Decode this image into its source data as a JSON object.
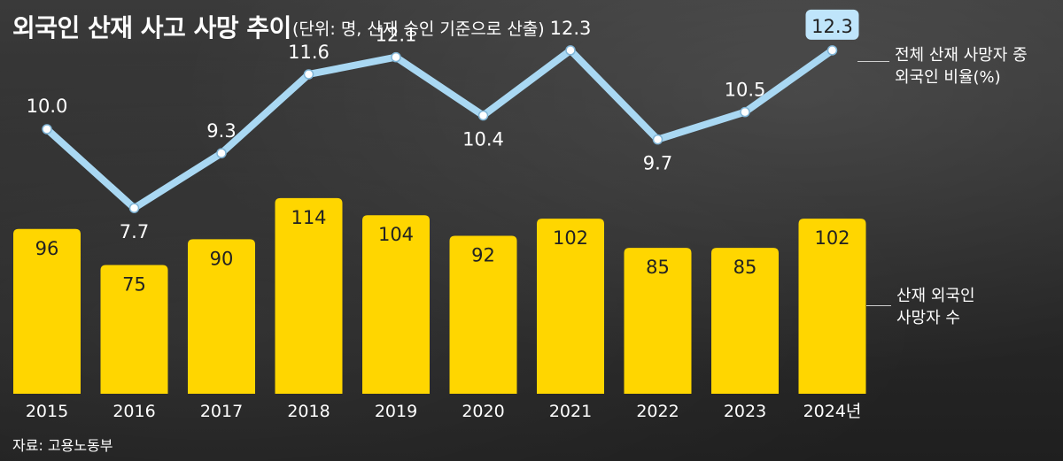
{
  "header": {
    "title": "외국인 산재 사고 사망 추이",
    "subtitle": "(단위: 명, 산재 승인 기준으로 산출)"
  },
  "footer": {
    "source": "자료: 고용노동부"
  },
  "colors": {
    "bar": "#ffd600",
    "line": "#a9d8f3",
    "highlight_box": "#bfe5fb",
    "text_on_bar": "#222222",
    "text_on_bg": "#ffffff"
  },
  "chart_data": {
    "type": "bar",
    "categories": [
      "2015",
      "2016",
      "2017",
      "2018",
      "2019",
      "2020",
      "2021",
      "2022",
      "2023",
      "2024년"
    ],
    "series": [
      {
        "name": "산재 외국인 사망자 수",
        "type": "bar",
        "values": [
          96,
          75,
          90,
          114,
          104,
          92,
          102,
          85,
          85,
          102
        ]
      },
      {
        "name": "전체 산재 사망자 중 외국인 비율(%)",
        "type": "line",
        "values": [
          10.0,
          7.7,
          9.3,
          11.6,
          12.1,
          10.4,
          12.3,
          9.7,
          10.5,
          12.3
        ]
      }
    ],
    "bar_labels": [
      "96",
      "75",
      "90",
      "114",
      "104",
      "92",
      "102",
      "85",
      "85",
      "102"
    ],
    "line_labels": [
      "10.0",
      "7.7",
      "9.3",
      "11.6",
      "12.1",
      "10.4",
      "12.3",
      "9.7",
      "10.5",
      "12.3"
    ],
    "highlight_index": 9,
    "legend": {
      "line_label": [
        "전체 산재 사망자 중",
        "외국인 비율(%)"
      ],
      "bar_label": [
        "산재 외국인",
        "사망자 수"
      ],
      "placement": "right"
    },
    "grid": false
  }
}
